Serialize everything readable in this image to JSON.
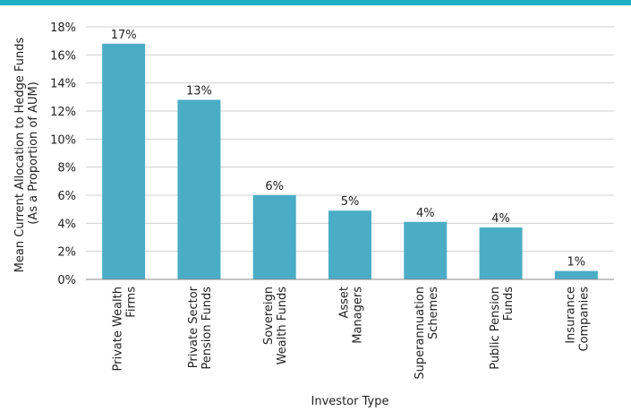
{
  "colors": {
    "accent_bar": "#1eaec6",
    "bar": "#4badc5",
    "grid": "#d0d0d0",
    "axis": "#888888"
  },
  "chart_data": {
    "type": "bar",
    "categories": [
      [
        "Private Wealth",
        "Firms"
      ],
      [
        "Private Sector",
        "Pension Funds"
      ],
      [
        "Sovereign",
        "Wealth Funds"
      ],
      [
        "Asset",
        "Managers"
      ],
      [
        "Superannuation",
        "Schemes"
      ],
      [
        "Public Pension",
        "Funds"
      ],
      [
        "Insurance",
        "Companies"
      ]
    ],
    "values": [
      16.8,
      12.8,
      6.0,
      4.9,
      4.1,
      3.7,
      0.6
    ],
    "data_labels": [
      "17%",
      "13%",
      "6%",
      "5%",
      "4%",
      "4%",
      "1%"
    ],
    "ylim": [
      0,
      18
    ],
    "yticks": [
      0,
      2,
      4,
      6,
      8,
      10,
      12,
      14,
      16,
      18
    ],
    "ytick_labels": [
      "0%",
      "2%",
      "4%",
      "6%",
      "8%",
      "10%",
      "12%",
      "14%",
      "16%",
      "18%"
    ],
    "ylabel": [
      "Mean Current Allocation to Hedge Funds",
      "(As a Proportion of AUM)"
    ],
    "xlabel": "Investor Type",
    "grid": true
  }
}
